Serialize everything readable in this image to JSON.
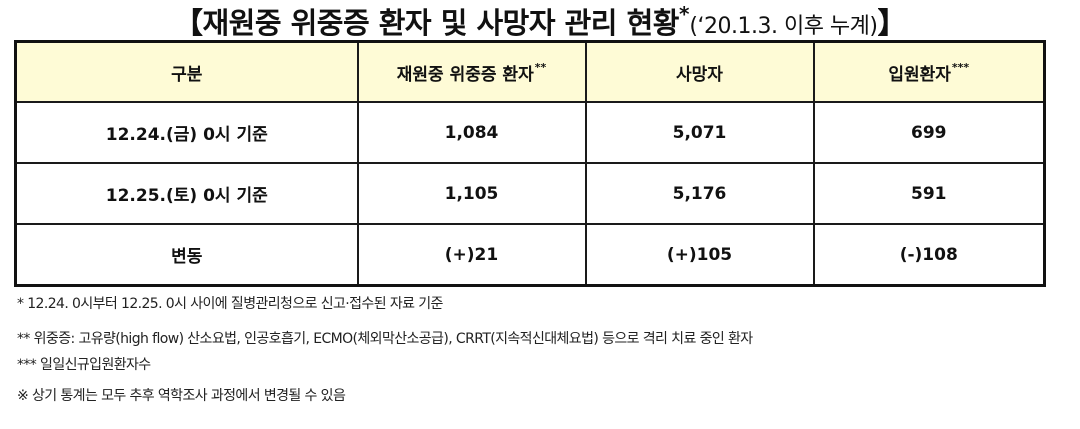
{
  "title": {
    "main": "【재원중  위중증 환자 및 사망자 관리 현황",
    "star": "*",
    "sub": "(‘20.1.3. 이후 누계)",
    "close_bracket": "】"
  },
  "table": {
    "headers": [
      {
        "label": "구분",
        "sup": ""
      },
      {
        "label": "재원중 위중증 환자",
        "sup": "**"
      },
      {
        "label": "사망자",
        "sup": ""
      },
      {
        "label": "입원환자",
        "sup": "***"
      }
    ],
    "rows": [
      {
        "label": "12.24.(금) 0시 기준",
        "critical": "1,084",
        "deaths": "5,071",
        "admitted": "699"
      },
      {
        "label": "12.25.(토) 0시 기준",
        "critical": "1,105",
        "deaths": "5,176",
        "admitted": "591"
      },
      {
        "label": "변동",
        "critical": "(+)21",
        "deaths": "(+)105",
        "admitted": "(-)108"
      }
    ]
  },
  "notes": [
    "* 12.24. 0시부터 12.25. 0시 사이에 질병관리청으로 신고·접수된 자료 기준",
    "** 위중증: 고유량(high flow) 산소요법, 인공호흡기, ECMO(체외막산소공급), CRRT(지속적신대체요법) 등으로 격리 치료 중인 환자",
    "*** 일일신규입원환자수",
    "※ 상기 통계는 모두 추후 역학조사 과정에서 변경될 수 있음"
  ]
}
